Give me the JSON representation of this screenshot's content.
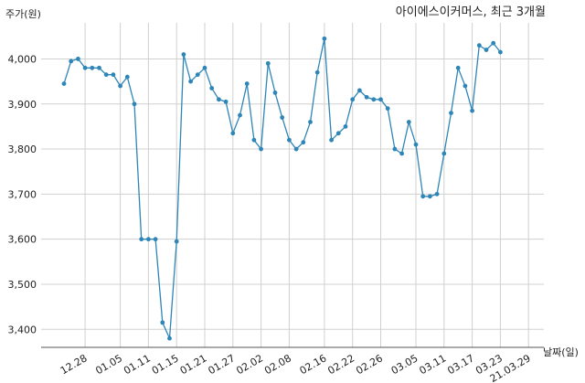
{
  "chart_data": {
    "type": "line",
    "title": "아이에스이커머스, 최근 3개월",
    "xlabel": "날짜(일)",
    "ylabel": "주가(원)",
    "ylim": [
      3360,
      4080
    ],
    "grid": true,
    "y_ticks": [
      "3,400",
      "3,500",
      "3,600",
      "3,700",
      "3,800",
      "3,900",
      "4,000"
    ],
    "x_ticks": [
      "12.28",
      "01.05",
      "01.11",
      "01.15",
      "01.21",
      "01.27",
      "02.02",
      "02.08",
      "02.16",
      "02.22",
      "02.26",
      "03.05",
      "03.11",
      "03.17",
      "03.23",
      "21.03.29"
    ],
    "x_tick_index": [
      3,
      8,
      12,
      16,
      20,
      24,
      28,
      32,
      37,
      41,
      45,
      50,
      54,
      58,
      62,
      66
    ],
    "color": "#2e86b8",
    "series": [
      {
        "values": [
          3945,
          3995,
          4000,
          3980,
          3980,
          3980,
          3965,
          3965,
          3940,
          3960,
          3900,
          3600,
          3600,
          3600,
          3415,
          3380,
          3595,
          4010,
          3950,
          3965,
          3980,
          3935,
          3910,
          3905,
          3835,
          3875,
          3945,
          3820,
          3800,
          3990,
          3925,
          3870,
          3820,
          3800,
          3815,
          3860,
          3970,
          4045,
          3820,
          3835,
          3850,
          3910,
          3930,
          3915,
          3910,
          3910,
          3890,
          3800,
          3790,
          3860,
          3810,
          3695,
          3695,
          3700,
          3790,
          3880,
          3980,
          3940,
          3885,
          4030,
          4020,
          4035,
          4015
        ]
      }
    ]
  }
}
